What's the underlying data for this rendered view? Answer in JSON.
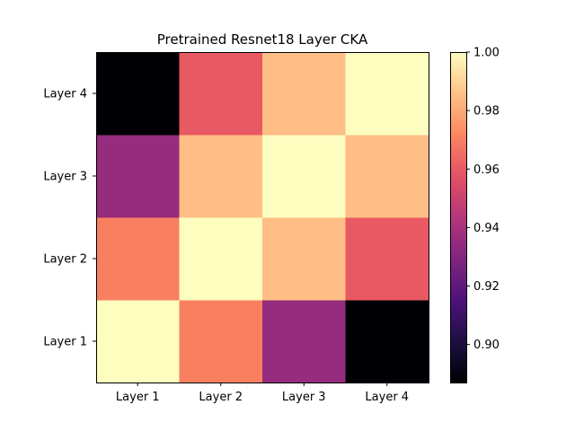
{
  "chart_data": {
    "type": "heatmap",
    "title": "Pretrained Resnet18 Layer CKA",
    "xlabel": "",
    "ylabel": "",
    "x_categories": [
      "Layer 1",
      "Layer 2",
      "Layer 3",
      "Layer 4"
    ],
    "y_categories": [
      "Layer 1",
      "Layer 2",
      "Layer 3",
      "Layer 4"
    ],
    "y_order": "bottom-to-top",
    "values": [
      [
        1.0,
        0.97,
        0.935,
        0.887
      ],
      [
        0.97,
        1.0,
        0.985,
        0.96
      ],
      [
        0.935,
        0.985,
        1.0,
        0.985
      ],
      [
        0.887,
        0.96,
        0.985,
        1.0
      ]
    ],
    "colormap": "magma",
    "colorbar": {
      "range": [
        0.887,
        1.0
      ],
      "ticks": [
        0.9,
        0.92,
        0.94,
        0.96,
        0.98,
        1.0
      ],
      "tick_labels": [
        "0.90",
        "0.92",
        "0.94",
        "0.96",
        "0.98",
        "1.00"
      ]
    },
    "grid": false,
    "legend": "colorbar-right"
  }
}
